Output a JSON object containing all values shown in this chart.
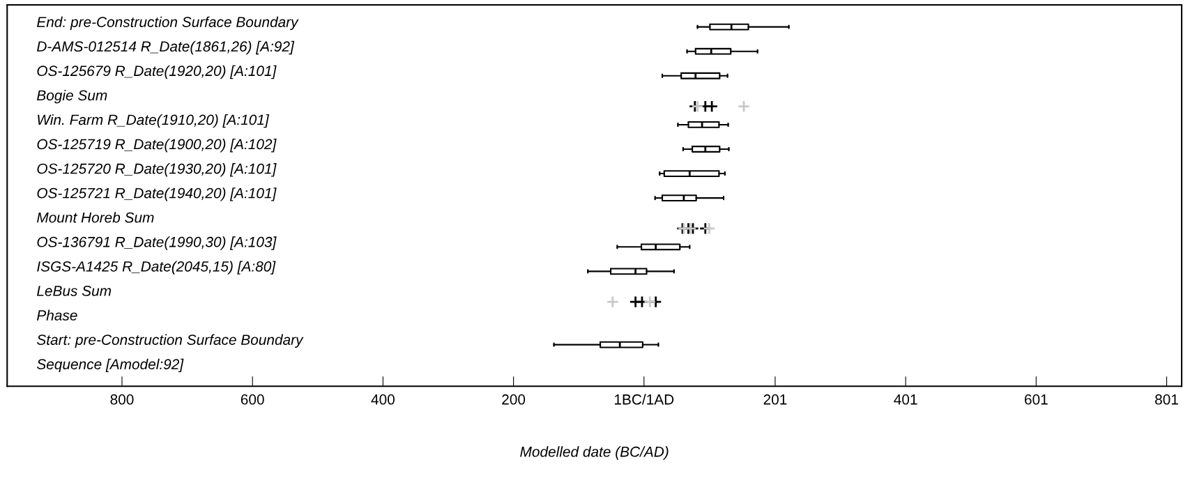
{
  "chart_data": {
    "type": "box",
    "orientation": "horizontal",
    "xlabel": "Modelled date (BC/AD)",
    "marker": "cross",
    "categories": [
      "End: pre-Construction Surface Boundary",
      "D-AMS-012514 R_Date(1861,26) [A:92]",
      "OS-125679 R_Date(1920,20) [A:101]",
      "Bogie Sum",
      "Win. Farm R_Date(1910,20) [A:101]",
      "OS-125719 R_Date(1900,20) [A:102]",
      "OS-125720 R_Date(1930,20) [A:101]",
      "OS-125721 R_Date(1940,20) [A:101]",
      "Mount Horeb Sum",
      "OS-136791 R_Date(1990,30) [A:103]",
      "ISGS-A1425 R_Date(2045,15) [A:80]",
      "LeBus Sum",
      "Phase",
      "Start: pre-Construction Surface Boundary",
      "Sequence [Amodel:92]"
    ],
    "xlim": [
      -976,
      824
    ],
    "xticks": [
      {
        "value": -800,
        "label": "800"
      },
      {
        "value": -600,
        "label": "600"
      },
      {
        "value": -400,
        "label": "400"
      },
      {
        "value": -200,
        "label": "200"
      },
      {
        "value": 0,
        "label": "1BC/1AD"
      },
      {
        "value": 201,
        "label": "201"
      },
      {
        "value": 401,
        "label": "401"
      },
      {
        "value": 601,
        "label": "601"
      },
      {
        "value": 801,
        "label": "801"
      }
    ],
    "series": [
      {
        "color": "#000000",
        "boxes": [
          {
            "low": 82,
            "q1": 101,
            "median": 134,
            "q3": 160,
            "high": 222
          },
          {
            "low": 66,
            "q1": 79,
            "median": 103,
            "q3": 133,
            "high": 174
          },
          {
            "low": 28,
            "q1": 57,
            "median": 79,
            "q3": 116,
            "high": 128
          },
          null,
          {
            "low": 52,
            "q1": 68,
            "median": 89,
            "q3": 115,
            "high": 129
          },
          {
            "low": 60,
            "q1": 74,
            "median": 94,
            "q3": 116,
            "high": 130
          },
          {
            "low": 24,
            "q1": 31,
            "median": 70,
            "q3": 115,
            "high": 124
          },
          {
            "low": 17,
            "q1": 28,
            "median": 61,
            "q3": 80,
            "high": 122
          },
          null,
          {
            "low": -41,
            "q1": -4,
            "median": 18,
            "q3": 55,
            "high": 70
          },
          {
            "low": -86,
            "q1": -51,
            "median": -13,
            "q3": 4,
            "high": 46
          },
          null,
          null,
          {
            "low": -138,
            "q1": -67,
            "median": -37,
            "q3": -2,
            "high": 22
          },
          null
        ]
      },
      {
        "type": "scatter",
        "color": "#000000",
        "x": [
          "Bogie Sum",
          "Bogie Sum",
          "Bogie Sum",
          "Mount Horeb Sum",
          "Mount Horeb Sum",
          "Mount Horeb Sum",
          "Mount Horeb Sum",
          "LeBus Sum",
          "LeBus Sum",
          "LeBus Sum"
        ],
        "values": [
          78,
          94,
          104,
          59,
          68,
          75,
          94,
          -13,
          -3,
          18
        ]
      },
      {
        "type": "scatter",
        "color": "#c8c8c8",
        "x": [
          "Bogie Sum",
          "Bogie Sum",
          "Mount Horeb Sum",
          "Mount Horeb Sum",
          "Mount Horeb Sum",
          "LeBus Sum",
          "LeBus Sum"
        ],
        "values": [
          82,
          153,
          61,
          71,
          100,
          -48,
          9
        ]
      }
    ]
  }
}
